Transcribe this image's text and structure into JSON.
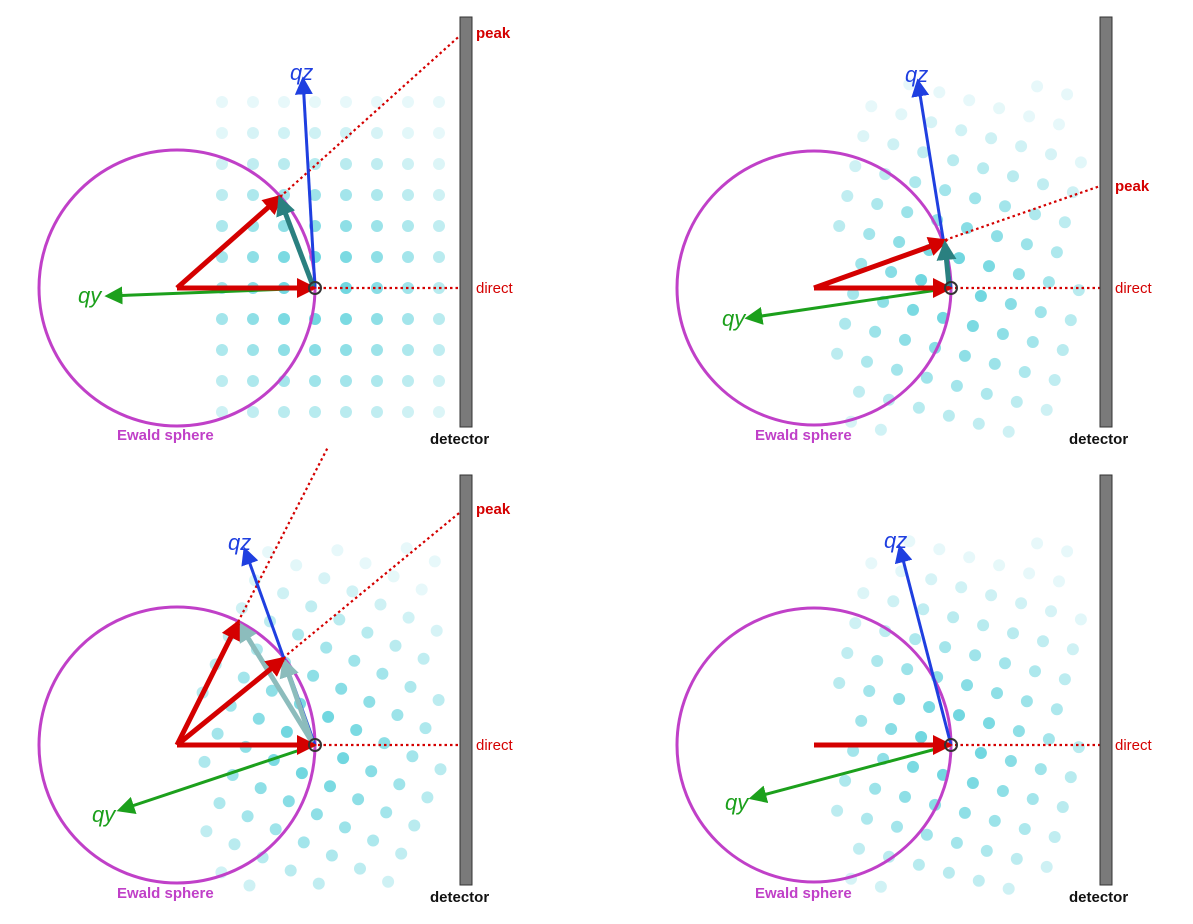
{
  "labels": {
    "peak": "peak",
    "direct": "direct",
    "detector": "detector",
    "ewald": "Ewald sphere",
    "qy": "qy",
    "qz": "qz"
  },
  "colors": {
    "ewald": "#c040c8",
    "beam": "#d40000",
    "qz_axis": "#1f3fe0",
    "qy_axis": "#1ca01c",
    "q_vector": "#2a8080",
    "q_vector_light": "#8cbcbc",
    "dots": "#3cc8d4",
    "detector": "#7a7a7a",
    "detector_label": "#111111"
  },
  "panels": [
    {
      "id": "top-left",
      "show_peak_label": true,
      "rotation_deg": 0,
      "scattered_beams": 1
    },
    {
      "id": "top-right",
      "show_peak_label": true,
      "rotation_deg": 15,
      "scattered_beams": 1
    },
    {
      "id": "bottom-left",
      "show_peak_label": true,
      "rotation_deg": 25,
      "scattered_beams": 2
    },
    {
      "id": "bottom-right",
      "show_peak_label": false,
      "rotation_deg": 15,
      "scattered_beams": 0
    }
  ]
}
